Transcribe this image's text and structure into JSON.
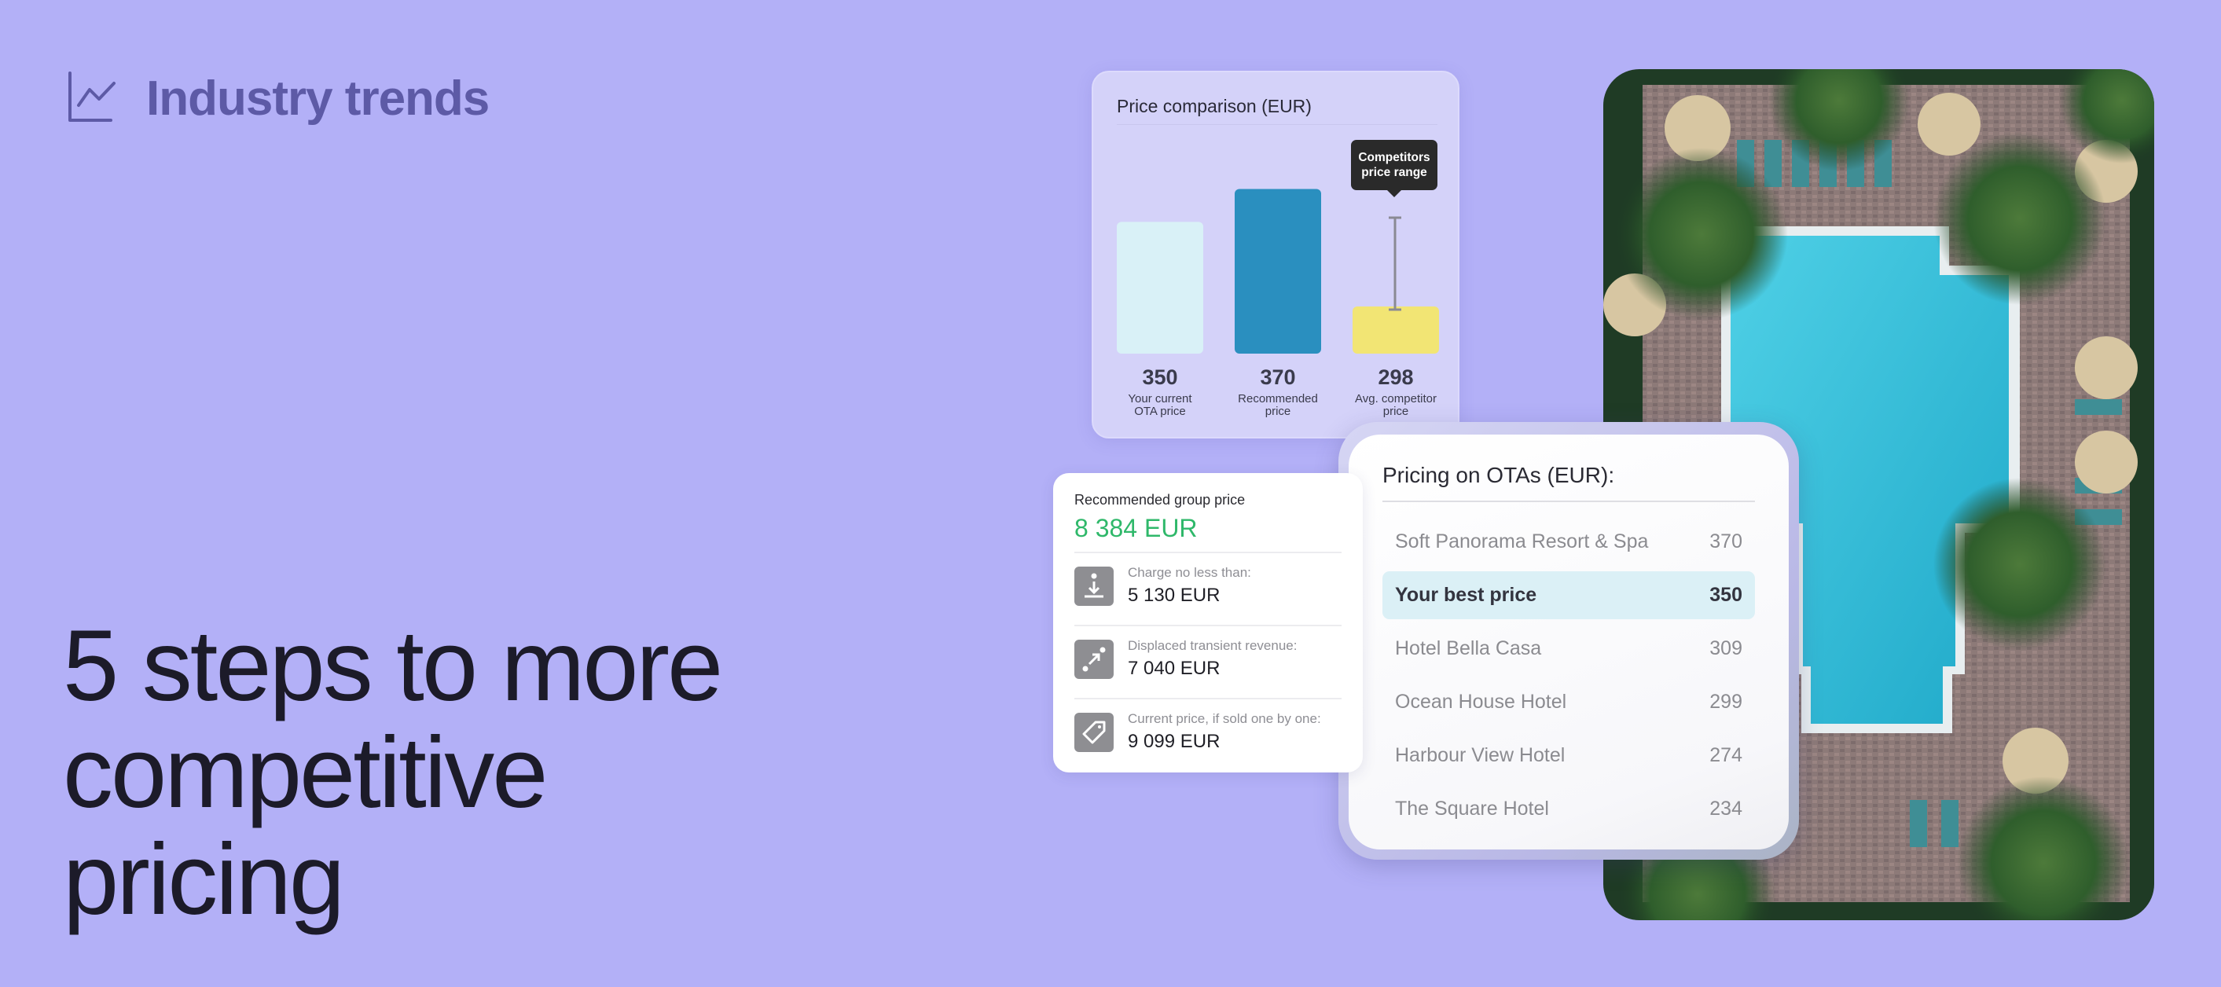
{
  "brand": {
    "title": "Industry trends",
    "icon": "line-chart-icon",
    "color": "#5d5aa6"
  },
  "headline": {
    "lines": [
      "5 steps to more",
      "competitive",
      "pricing"
    ]
  },
  "colors": {
    "background": "#b3b0f7",
    "current_bar": "#d9f1f7",
    "recommended_bar": "#2a8fbf",
    "competitor_bar": "#f2e574",
    "group_total": "#2fb86a"
  },
  "chart_data": {
    "type": "bar",
    "title": "Price comparison (EUR)",
    "categories": [
      "Your current OTA price",
      "Recommended price",
      "Avg. competitor price"
    ],
    "category_lines": [
      [
        "Your current",
        "OTA price"
      ],
      [
        "Recommended",
        "price"
      ],
      [
        "Avg. competitor",
        "price"
      ]
    ],
    "values": [
      350,
      370,
      298
    ],
    "value_labels": [
      "350",
      "370",
      "298"
    ],
    "tooltip": [
      "Competitors",
      "price range"
    ],
    "error_bar_on": "Avg. competitor price",
    "grid": false
  },
  "ota": {
    "title": "Pricing on OTAs (EUR):",
    "rows": [
      {
        "name": "Soft Panorama Resort & Spa",
        "price": "370"
      },
      {
        "name": "Your best price",
        "price": "350",
        "highlight": true
      },
      {
        "name": "Hotel Bella Casa",
        "price": "309"
      },
      {
        "name": "Ocean House Hotel",
        "price": "299"
      },
      {
        "name": "Harbour View Hotel",
        "price": "274"
      },
      {
        "name": "The Square Hotel",
        "price": "234"
      }
    ]
  },
  "group": {
    "title": "Recommended group price",
    "total": "8 384 EUR",
    "items": [
      {
        "icon": "download-arrow-icon",
        "label": "Charge no less than:",
        "value": "5 130 EUR"
      },
      {
        "icon": "expand-arrow-icon",
        "label": "Displaced transient revenue:",
        "value": "7 040 EUR"
      },
      {
        "icon": "price-tag-icon",
        "label": "Current price, if sold one by one:",
        "value": "9 099 EUR"
      }
    ]
  }
}
